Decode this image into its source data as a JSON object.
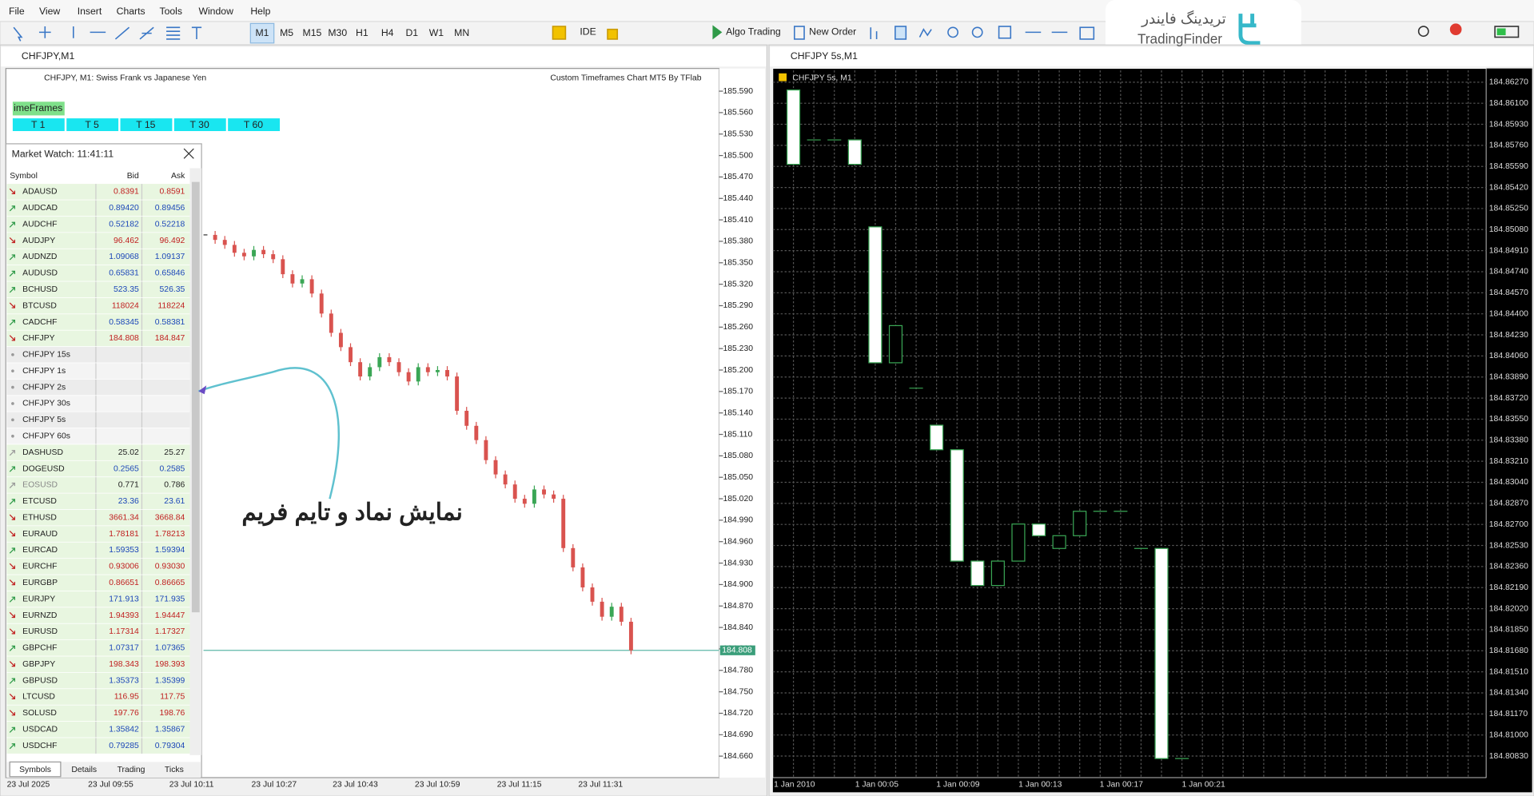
{
  "menu": [
    "File",
    "View",
    "Insert",
    "Charts",
    "Tools",
    "Window",
    "Help"
  ],
  "toolbar": {
    "timeframes": [
      "M1",
      "M5",
      "M15",
      "M30",
      "H1",
      "H4",
      "D1",
      "W1",
      "MN"
    ],
    "ide": "IDE",
    "algo_trading": "Algo Trading",
    "new_order": "New Order"
  },
  "logo": {
    "persian": "تریدینگ فایندر",
    "latin": "TradingFinder"
  },
  "left_panel": {
    "indicator_label": "Custom Timeframes Chart MT5 By TFlab",
    "timeframes_button": "imeFrames",
    "tf_buttons": [
      "T 1",
      "T 5",
      "T 15",
      "T 30",
      "T 60"
    ],
    "annotation": "نمایش نماد و تایم فریم"
  },
  "market_watch": {
    "title": "Market Watch: 11:41:11",
    "columns": [
      "Symbol",
      "Bid",
      "Ask"
    ],
    "rows": [
      {
        "symbol": "ADAUSD",
        "bid": "0.8391",
        "ask": "0.8591",
        "trend": "down"
      },
      {
        "symbol": "AUDCAD",
        "bid": "0.89420",
        "ask": "0.89456",
        "trend": "up"
      },
      {
        "symbol": "AUDCHF",
        "bid": "0.52182",
        "ask": "0.52218",
        "trend": "up"
      },
      {
        "symbol": "AUDJPY",
        "bid": "96.462",
        "ask": "96.492",
        "trend": "down"
      },
      {
        "symbol": "AUDNZD",
        "bid": "1.09068",
        "ask": "1.09137",
        "trend": "up"
      },
      {
        "symbol": "AUDUSD",
        "bid": "0.65831",
        "ask": "0.65846",
        "trend": "up"
      },
      {
        "symbol": "BCHUSD",
        "bid": "523.35",
        "ask": "526.35",
        "trend": "up"
      },
      {
        "symbol": "BTCUSD",
        "bid": "118024",
        "ask": "118224",
        "trend": "down"
      },
      {
        "symbol": "CADCHF",
        "bid": "0.58345",
        "ask": "0.58381",
        "trend": "up"
      },
      {
        "symbol": "CHFJPY",
        "bid": "184.808",
        "ask": "184.847",
        "trend": "down"
      },
      {
        "symbol": "CHFJPY 15s"
      },
      {
        "symbol": "CHFJPY 1s"
      },
      {
        "symbol": "CHFJPY 2s"
      },
      {
        "symbol": "CHFJPY 30s"
      },
      {
        "symbol": "CHFJPY 5s"
      },
      {
        "symbol": "CHFJPY 60s"
      },
      {
        "symbol": "DASHUSD",
        "bid": "25.02",
        "ask": "25.27",
        "trend": "flat"
      },
      {
        "symbol": "DOGEUSD",
        "bid": "0.2565",
        "ask": "0.2585",
        "trend": "up"
      },
      {
        "symbol": "EOSUSD",
        "bid": "0.771",
        "ask": "0.786",
        "trend": "flat"
      },
      {
        "symbol": "ETCUSD",
        "bid": "23.36",
        "ask": "23.61",
        "trend": "up"
      },
      {
        "symbol": "ETHUSD",
        "bid": "3661.34",
        "ask": "3668.84",
        "trend": "down"
      },
      {
        "symbol": "EURAUD",
        "bid": "1.78181",
        "ask": "1.78213",
        "trend": "down"
      },
      {
        "symbol": "EURCAD",
        "bid": "1.59353",
        "ask": "1.59394",
        "trend": "up"
      },
      {
        "symbol": "EURCHF",
        "bid": "0.93006",
        "ask": "0.93030",
        "trend": "down"
      },
      {
        "symbol": "EURGBP",
        "bid": "0.86651",
        "ask": "0.86665",
        "trend": "down"
      },
      {
        "symbol": "EURJPY",
        "bid": "171.913",
        "ask": "171.935",
        "trend": "up"
      },
      {
        "symbol": "EURNZD",
        "bid": "1.94393",
        "ask": "1.94447",
        "trend": "down"
      },
      {
        "symbol": "EURUSD",
        "bid": "1.17314",
        "ask": "1.17327",
        "trend": "down"
      },
      {
        "symbol": "GBPCHF",
        "bid": "1.07317",
        "ask": "1.07365",
        "trend": "up"
      },
      {
        "symbol": "GBPJPY",
        "bid": "198.343",
        "ask": "198.393",
        "trend": "down"
      },
      {
        "symbol": "GBPUSD",
        "bid": "1.35373",
        "ask": "1.35399",
        "trend": "up"
      },
      {
        "symbol": "LTCUSD",
        "bid": "116.95",
        "ask": "117.75",
        "trend": "down"
      },
      {
        "symbol": "SOLUSD",
        "bid": "197.76",
        "ask": "198.76",
        "trend": "down"
      },
      {
        "symbol": "USDCAD",
        "bid": "1.35842",
        "ask": "1.35867",
        "trend": "up"
      },
      {
        "symbol": "USDCHF",
        "bid": "0.79285",
        "ask": "0.79304",
        "trend": "up"
      }
    ],
    "tabs": [
      "Symbols",
      "Details",
      "Trading",
      "Ticks"
    ]
  },
  "chart_data": [
    {
      "type": "candlestick",
      "title": "CHFJPY,M1",
      "subtitle": "CHFJPY, M1:  Swiss Frank vs Japanese Yen",
      "close": [
        185.389,
        185.382,
        185.375,
        185.364,
        185.359,
        185.368,
        185.362,
        185.355,
        185.334,
        185.321,
        185.327,
        185.307,
        185.279,
        185.252,
        185.232,
        185.211,
        185.191,
        185.204,
        185.218,
        185.211,
        185.197,
        185.184,
        185.204,
        185.197,
        185.2,
        185.191,
        185.143,
        185.122,
        185.102,
        185.074,
        185.054,
        185.04,
        185.02,
        185.013,
        185.033,
        185.026,
        185.02,
        184.951,
        184.924,
        184.896,
        184.876,
        184.855,
        184.869,
        184.848,
        184.808
      ],
      "last_price": 184.808,
      "ylim": [
        184.63,
        185.619
      ],
      "yticks": [
        {
          "value": 185.59,
          "label": "185.590"
        },
        {
          "value": 185.56,
          "label": "185.560"
        },
        {
          "value": 185.53,
          "label": "185.530"
        },
        {
          "value": 185.5,
          "label": "185.500"
        },
        {
          "value": 185.47,
          "label": "185.470"
        },
        {
          "value": 185.44,
          "label": "185.440"
        },
        {
          "value": 185.41,
          "label": "185.410"
        },
        {
          "value": 185.38,
          "label": "185.380"
        },
        {
          "value": 185.35,
          "label": "185.350"
        },
        {
          "value": 185.32,
          "label": "185.320"
        },
        {
          "value": 185.29,
          "label": "185.290"
        },
        {
          "value": 185.26,
          "label": "185.260"
        },
        {
          "value": 185.23,
          "label": "185.230"
        },
        {
          "value": 185.2,
          "label": "185.200"
        },
        {
          "value": 185.17,
          "label": "185.170"
        },
        {
          "value": 185.14,
          "label": "185.140"
        },
        {
          "value": 185.11,
          "label": "185.110"
        },
        {
          "value": 185.08,
          "label": "185.080"
        },
        {
          "value": 185.05,
          "label": "185.050"
        },
        {
          "value": 185.02,
          "label": "185.020"
        },
        {
          "value": 184.99,
          "label": "184.990"
        },
        {
          "value": 184.96,
          "label": "184.960"
        },
        {
          "value": 184.93,
          "label": "184.930"
        },
        {
          "value": 184.9,
          "label": "184.900"
        },
        {
          "value": 184.87,
          "label": "184.870"
        },
        {
          "value": 184.84,
          "label": "184.840"
        },
        {
          "value": 184.81,
          "label": "184.810"
        },
        {
          "value": 184.78,
          "label": "184.780"
        },
        {
          "value": 184.75,
          "label": "184.750"
        },
        {
          "value": 184.72,
          "label": "184.720"
        },
        {
          "value": 184.69,
          "label": "184.690"
        },
        {
          "value": 184.66,
          "label": "184.660"
        }
      ],
      "xtick_labels": [
        "23 Jul 2025",
        "23 Jul 09:55",
        "23 Jul 10:11",
        "23 Jul 10:27",
        "23 Jul 10:43",
        "23 Jul 10:59",
        "23 Jul 11:15",
        "23 Jul 11:31"
      ]
    },
    {
      "type": "candlestick",
      "title": "CHFJPY 5s,M1",
      "subtitle": "CHFJPY 5s, M1",
      "open": [
        184.86207,
        184.85804,
        184.85804,
        184.85804,
        184.85102,
        184.84005,
        184.838,
        184.83501,
        184.83303,
        184.82404,
        184.82207,
        184.82404,
        184.82703,
        184.82506,
        184.82609,
        184.82806,
        184.82806,
        184.82506,
        184.82506,
        184.8081
      ],
      "close": [
        184.85607,
        184.85804,
        184.85804,
        184.85607,
        184.84005,
        184.84305,
        184.838,
        184.83303,
        184.82404,
        184.82207,
        184.82404,
        184.82703,
        184.82609,
        184.82609,
        184.82806,
        184.82806,
        184.82806,
        184.82506,
        184.8081,
        184.8081
      ],
      "ylim": [
        184.80656,
        184.86365
      ],
      "yticks": [
        {
          "value": 184.8627,
          "label": "184.86270"
        },
        {
          "value": 184.861,
          "label": "184.86100"
        },
        {
          "value": 184.8593,
          "label": "184.85930"
        },
        {
          "value": 184.8576,
          "label": "184.85760"
        },
        {
          "value": 184.8559,
          "label": "184.85590"
        },
        {
          "value": 184.8542,
          "label": "184.85420"
        },
        {
          "value": 184.8525,
          "label": "184.85250"
        },
        {
          "value": 184.8508,
          "label": "184.85080"
        },
        {
          "value": 184.8491,
          "label": "184.84910"
        },
        {
          "value": 184.8474,
          "label": "184.84740"
        },
        {
          "value": 184.8457,
          "label": "184.84570"
        },
        {
          "value": 184.844,
          "label": "184.84400"
        },
        {
          "value": 184.8423,
          "label": "184.84230"
        },
        {
          "value": 184.8406,
          "label": "184.84060"
        },
        {
          "value": 184.8389,
          "label": "184.83890"
        },
        {
          "value": 184.8372,
          "label": "184.83720"
        },
        {
          "value": 184.8355,
          "label": "184.83550"
        },
        {
          "value": 184.8338,
          "label": "184.83380"
        },
        {
          "value": 184.8321,
          "label": "184.83210"
        },
        {
          "value": 184.8304,
          "label": "184.83040"
        },
        {
          "value": 184.8287,
          "label": "184.82870"
        },
        {
          "value": 184.827,
          "label": "184.82700"
        },
        {
          "value": 184.8253,
          "label": "184.82530"
        },
        {
          "value": 184.8236,
          "label": "184.82360"
        },
        {
          "value": 184.8219,
          "label": "184.82190"
        },
        {
          "value": 184.8202,
          "label": "184.82020"
        },
        {
          "value": 184.8185,
          "label": "184.81850"
        },
        {
          "value": 184.8168,
          "label": "184.81680"
        },
        {
          "value": 184.8151,
          "label": "184.81510"
        },
        {
          "value": 184.8134,
          "label": "184.81340"
        },
        {
          "value": 184.8117,
          "label": "184.81170"
        },
        {
          "value": 184.81,
          "label": "184.81000"
        },
        {
          "value": 184.8083,
          "label": "184.80830"
        }
      ],
      "xtick_labels": [
        "1 Jan 2010",
        "1 Jan 00:05",
        "1 Jan 00:09",
        "1 Jan 00:13",
        "1 Jan 00:17",
        "1 Jan 00:21"
      ],
      "grid": true
    }
  ]
}
